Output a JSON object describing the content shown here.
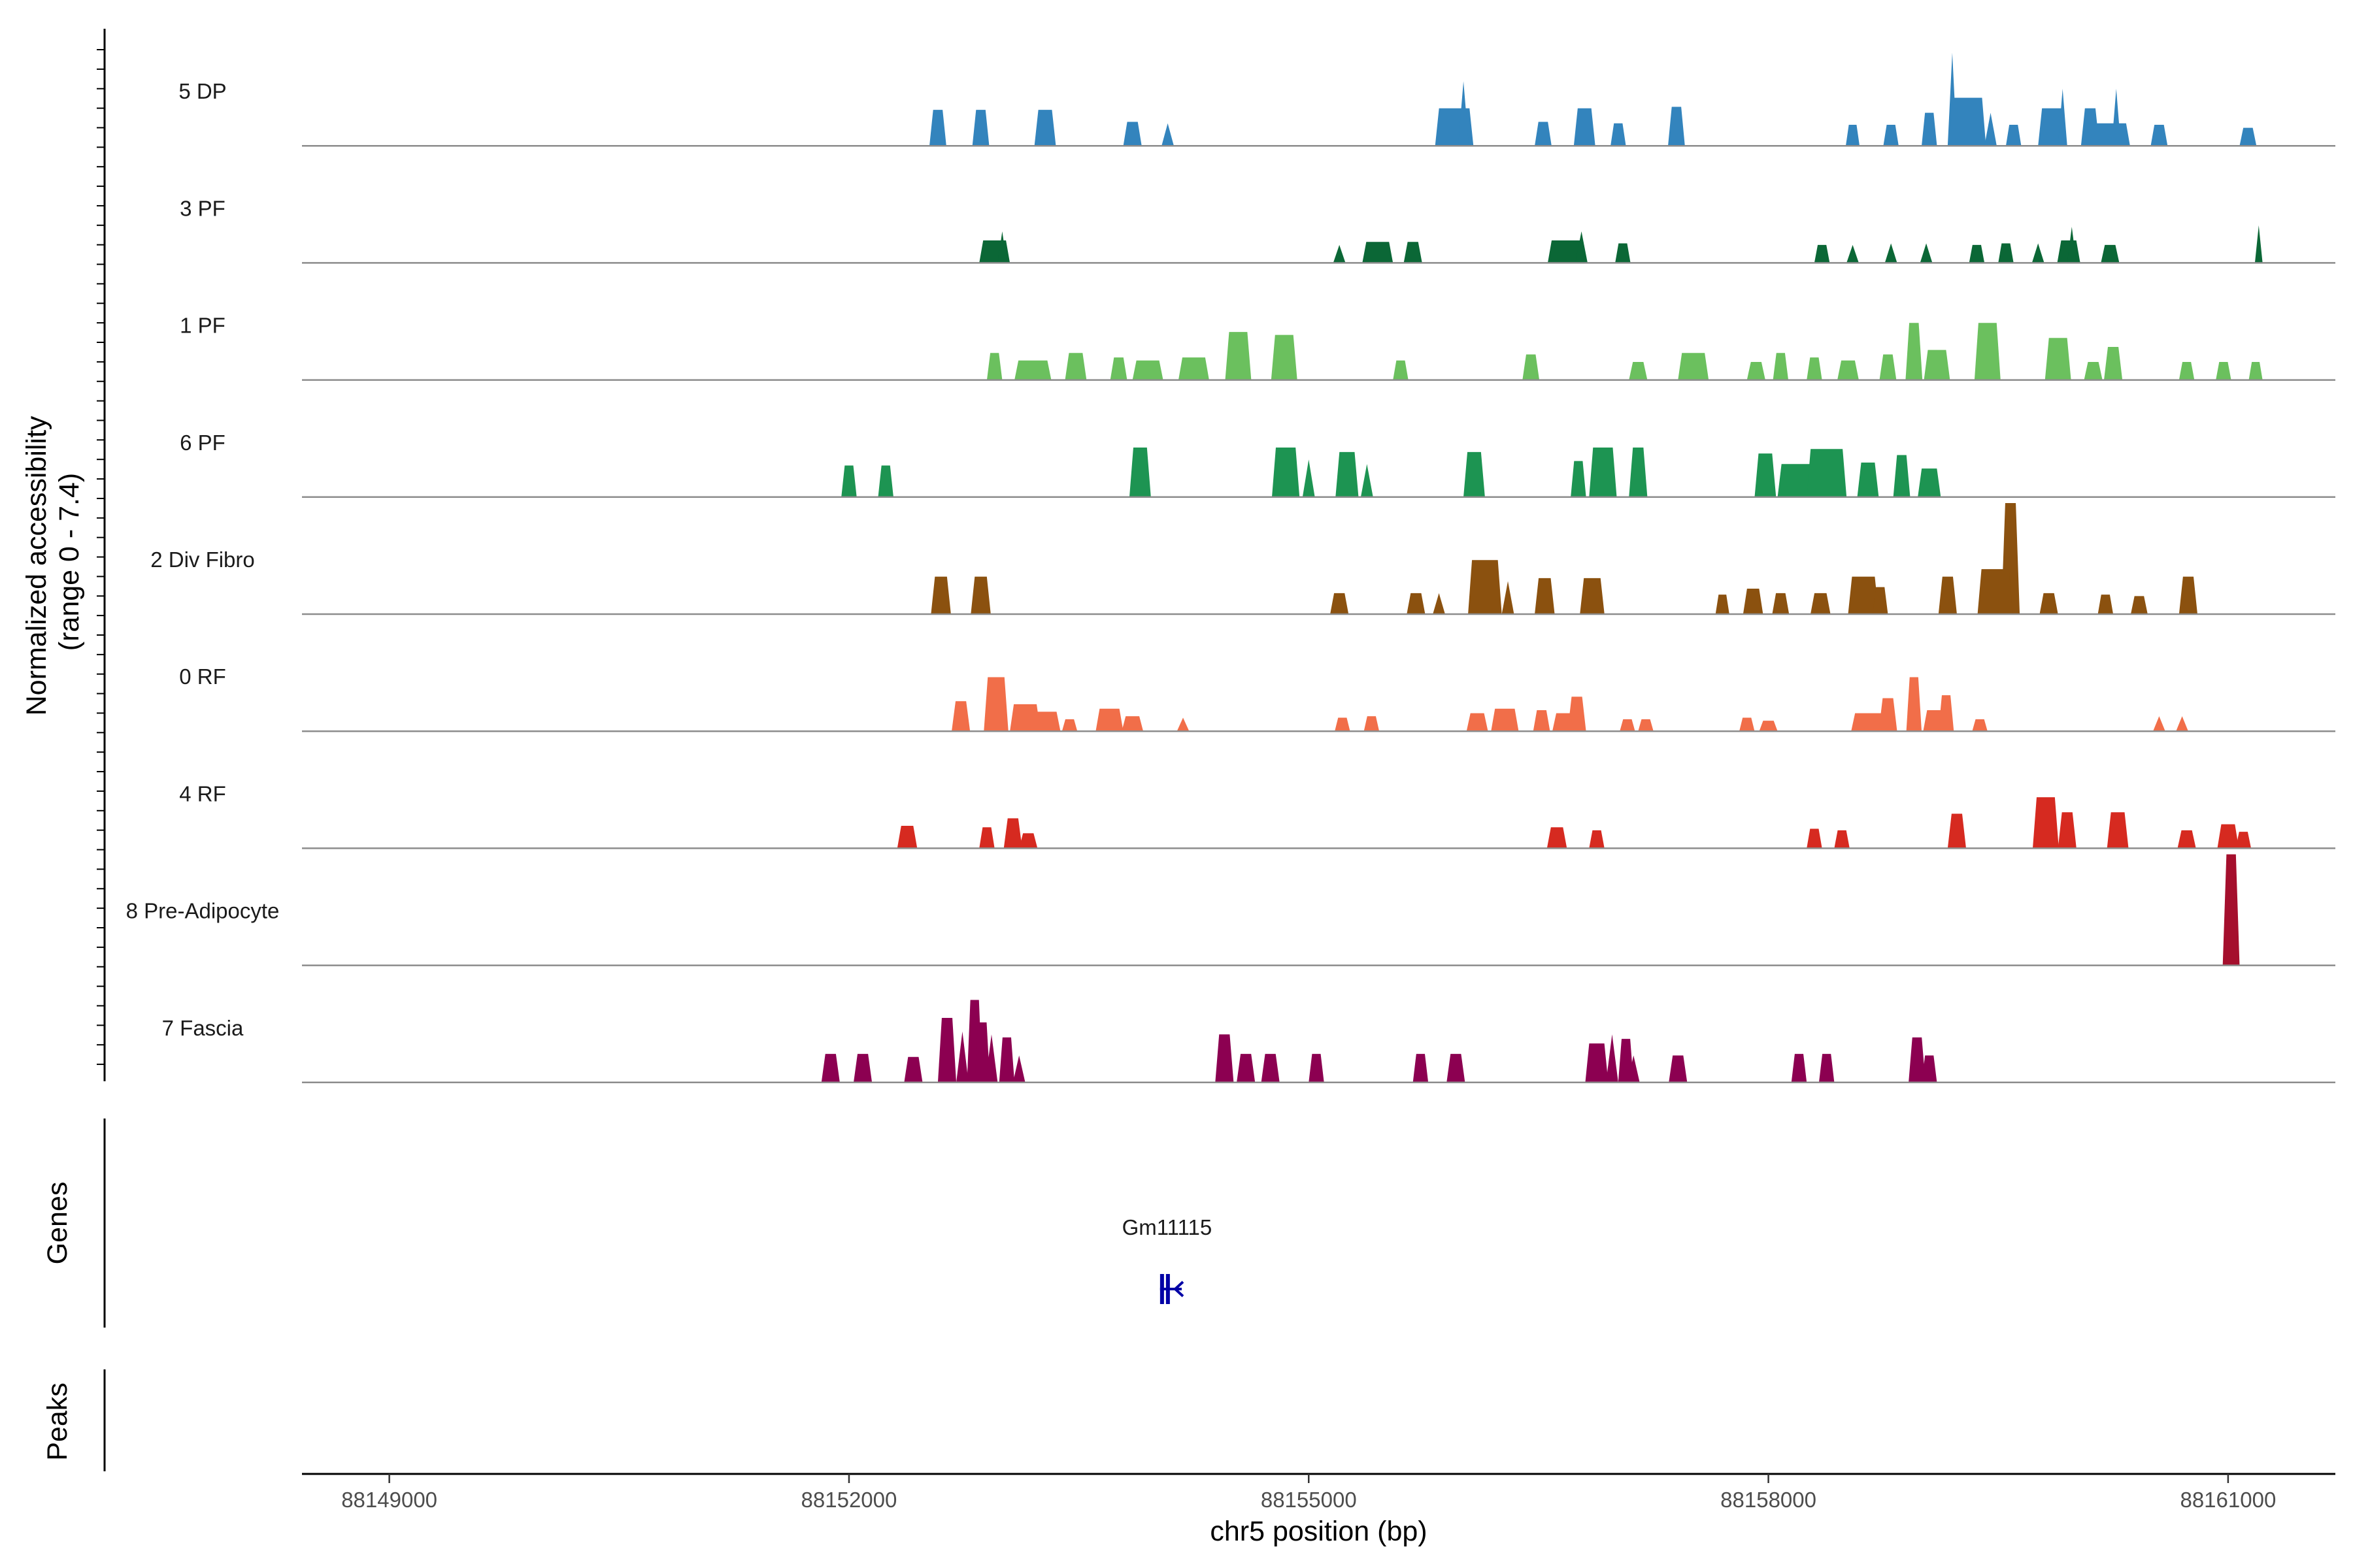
{
  "chart_data": {
    "type": "area",
    "title": "",
    "ylabel": "Normalized accessibility\n(range 0 - 7.4)",
    "ylim": [
      0,
      7.4
    ],
    "xlabel": "chr5 position (bp)",
    "xlim": [
      88148430,
      88161700
    ],
    "x_ticks": [
      88149000,
      88152000,
      88155000,
      88158000,
      88161000
    ],
    "x_tick_labels": [
      "88149000",
      "88152000",
      "88155000",
      "88158000",
      "88161000"
    ],
    "series": [
      {
        "name": "5 DP",
        "color": "#3384BD",
        "peaks": [
          [
            88152580,
            2.4,
            110
          ],
          [
            88152860,
            2.4,
            110
          ],
          [
            88153280,
            2.4,
            140
          ],
          [
            88153850,
            1.6,
            120
          ],
          [
            88154080,
            1.5,
            80
          ],
          [
            88155950,
            2.5,
            250
          ],
          [
            88156010,
            4.3,
            70
          ],
          [
            88156530,
            1.6,
            110
          ],
          [
            88156800,
            2.5,
            140
          ],
          [
            88157020,
            1.5,
            100
          ],
          [
            88157400,
            2.6,
            110
          ],
          [
            88158550,
            1.4,
            90
          ],
          [
            88158800,
            1.4,
            100
          ],
          [
            88159050,
            2.2,
            100
          ],
          [
            88159200,
            6.2,
            60
          ],
          [
            88159300,
            3.2,
            240
          ],
          [
            88159450,
            2.2,
            80
          ],
          [
            88159600,
            1.4,
            100
          ],
          [
            88159850,
            2.5,
            180
          ],
          [
            88159920,
            3.8,
            60
          ],
          [
            88160100,
            2.5,
            120
          ],
          [
            88160270,
            3.8,
            60
          ],
          [
            88160200,
            1.5,
            320
          ],
          [
            88160550,
            1.4,
            110
          ],
          [
            88161130,
            1.2,
            110
          ]
        ]
      },
      {
        "name": "3 PF",
        "color": "#0B6736",
        "peaks": [
          [
            88152950,
            1.5,
            200
          ],
          [
            88153000,
            2.1,
            60
          ],
          [
            88155200,
            1.2,
            80
          ],
          [
            88155450,
            1.4,
            200
          ],
          [
            88155680,
            1.4,
            120
          ],
          [
            88156680,
            1.5,
            240
          ],
          [
            88156780,
            2.1,
            80
          ],
          [
            88157050,
            1.3,
            100
          ],
          [
            88158350,
            1.2,
            100
          ],
          [
            88158550,
            1.2,
            80
          ],
          [
            88158800,
            1.3,
            80
          ],
          [
            88159030,
            1.3,
            80
          ],
          [
            88159360,
            1.2,
            100
          ],
          [
            88159550,
            1.3,
            100
          ],
          [
            88159760,
            1.3,
            80
          ],
          [
            88159960,
            1.5,
            150
          ],
          [
            88159980,
            2.4,
            60
          ],
          [
            88160230,
            1.2,
            120
          ],
          [
            88161200,
            2.5,
            50
          ]
        ]
      },
      {
        "name": "1 PF",
        "color": "#6BC05E",
        "peaks": [
          [
            88152950,
            1.8,
            100
          ],
          [
            88153200,
            1.3,
            240
          ],
          [
            88153480,
            1.8,
            140
          ],
          [
            88153760,
            1.5,
            110
          ],
          [
            88153950,
            1.3,
            200
          ],
          [
            88154250,
            1.5,
            200
          ],
          [
            88154540,
            3.2,
            170
          ],
          [
            88154840,
            3.0,
            170
          ],
          [
            88155600,
            1.3,
            100
          ],
          [
            88156450,
            1.7,
            110
          ],
          [
            88157150,
            1.2,
            120
          ],
          [
            88157510,
            1.8,
            200
          ],
          [
            88157920,
            1.2,
            120
          ],
          [
            88158080,
            1.8,
            100
          ],
          [
            88158300,
            1.5,
            100
          ],
          [
            88158520,
            1.3,
            140
          ],
          [
            88158780,
            1.7,
            110
          ],
          [
            88158950,
            3.8,
            110
          ],
          [
            88159100,
            2.0,
            170
          ],
          [
            88159430,
            3.8,
            170
          ],
          [
            88159890,
            2.8,
            170
          ],
          [
            88160120,
            1.2,
            120
          ],
          [
            88160250,
            2.2,
            120
          ],
          [
            88160730,
            1.2,
            100
          ],
          [
            88160970,
            1.2,
            100
          ],
          [
            88161180,
            1.2,
            90
          ]
        ]
      },
      {
        "name": "6 PF",
        "color": "#1D9452",
        "peaks": [
          [
            88152000,
            2.1,
            100
          ],
          [
            88152240,
            2.1,
            100
          ],
          [
            88153900,
            3.3,
            140
          ],
          [
            88154850,
            3.3,
            180
          ],
          [
            88155000,
            2.5,
            80
          ],
          [
            88155250,
            3.0,
            150
          ],
          [
            88155380,
            2.2,
            80
          ],
          [
            88156080,
            3.0,
            140
          ],
          [
            88156760,
            2.4,
            100
          ],
          [
            88156920,
            3.3,
            180
          ],
          [
            88157150,
            3.3,
            120
          ],
          [
            88157980,
            2.9,
            140
          ],
          [
            88158230,
            2.2,
            340
          ],
          [
            88158380,
            3.2,
            260
          ],
          [
            88158650,
            2.3,
            140
          ],
          [
            88158870,
            2.8,
            110
          ],
          [
            88159050,
            1.9,
            150
          ]
        ]
      },
      {
        "name": "2 Div Fibro",
        "color": "#8B510F",
        "peaks": [
          [
            88152600,
            2.5,
            130
          ],
          [
            88152860,
            2.5,
            130
          ],
          [
            88155200,
            1.4,
            120
          ],
          [
            88155700,
            1.4,
            120
          ],
          [
            88155850,
            1.4,
            80
          ],
          [
            88156150,
            3.6,
            220
          ],
          [
            88156300,
            2.2,
            80
          ],
          [
            88156540,
            2.4,
            130
          ],
          [
            88156850,
            2.4,
            160
          ],
          [
            88157700,
            1.3,
            90
          ],
          [
            88157900,
            1.7,
            130
          ],
          [
            88158080,
            1.4,
            110
          ],
          [
            88158340,
            1.4,
            130
          ],
          [
            88158620,
            2.5,
            200
          ],
          [
            88158730,
            1.8,
            100
          ],
          [
            88159170,
            2.5,
            120
          ],
          [
            88159580,
            7.4,
            120
          ],
          [
            88159480,
            3.0,
            230
          ],
          [
            88159830,
            1.4,
            120
          ],
          [
            88160200,
            1.3,
            100
          ],
          [
            88160420,
            1.2,
            110
          ],
          [
            88160740,
            2.5,
            120
          ]
        ]
      },
      {
        "name": "0 RF",
        "color": "#F16E49",
        "peaks": [
          [
            88152730,
            2.0,
            120
          ],
          [
            88152960,
            3.6,
            160
          ],
          [
            88153150,
            1.8,
            200
          ],
          [
            88153280,
            1.3,
            200
          ],
          [
            88153440,
            0.8,
            100
          ],
          [
            88153700,
            1.5,
            180
          ],
          [
            88153850,
            1.0,
            140
          ],
          [
            88154180,
            0.9,
            80
          ],
          [
            88155220,
            0.9,
            100
          ],
          [
            88155410,
            1.0,
            100
          ],
          [
            88156100,
            1.2,
            140
          ],
          [
            88156280,
            1.5,
            180
          ],
          [
            88156520,
            1.4,
            110
          ],
          [
            88156750,
            2.3,
            120
          ],
          [
            88156660,
            1.2,
            140
          ],
          [
            88157080,
            0.8,
            100
          ],
          [
            88157200,
            0.8,
            100
          ],
          [
            88157860,
            0.9,
            100
          ],
          [
            88158000,
            0.7,
            120
          ],
          [
            88158650,
            1.2,
            220
          ],
          [
            88158780,
            2.2,
            120
          ],
          [
            88158950,
            3.6,
            100
          ],
          [
            88159080,
            1.4,
            140
          ],
          [
            88159160,
            2.4,
            100
          ],
          [
            88159380,
            0.8,
            100
          ],
          [
            88160550,
            1.0,
            80
          ],
          [
            88160700,
            1.0,
            80
          ]
        ]
      },
      {
        "name": "4 RF",
        "color": "#D62A20",
        "peaks": [
          [
            88152380,
            1.5,
            130
          ],
          [
            88152900,
            1.4,
            100
          ],
          [
            88153070,
            2.0,
            120
          ],
          [
            88153170,
            1.0,
            120
          ],
          [
            88156620,
            1.4,
            130
          ],
          [
            88156880,
            1.2,
            100
          ],
          [
            88158300,
            1.3,
            100
          ],
          [
            88158480,
            1.2,
            100
          ],
          [
            88159230,
            2.3,
            120
          ],
          [
            88159810,
            3.4,
            170
          ],
          [
            88159950,
            2.4,
            120
          ],
          [
            88160280,
            2.4,
            140
          ],
          [
            88160730,
            1.2,
            120
          ],
          [
            88161000,
            1.6,
            140
          ],
          [
            88161100,
            1.1,
            100
          ]
        ]
      },
      {
        "name": "8 Pre-Adipocyte",
        "color": "#A50F2D",
        "peaks": [
          [
            88161020,
            7.4,
            110
          ]
        ]
      },
      {
        "name": "7 Fascia",
        "color": "#8C0051",
        "peaks": [
          [
            88151880,
            1.9,
            120
          ],
          [
            88152090,
            1.9,
            120
          ],
          [
            88152420,
            1.7,
            120
          ],
          [
            88152640,
            4.3,
            120
          ],
          [
            88152740,
            3.4,
            80
          ],
          [
            88152820,
            5.5,
            100
          ],
          [
            88152870,
            4.0,
            100
          ],
          [
            88152930,
            3.2,
            80
          ],
          [
            88153030,
            3.0,
            100
          ],
          [
            88153110,
            1.8,
            80
          ],
          [
            88154450,
            3.2,
            120
          ],
          [
            88154590,
            1.9,
            120
          ],
          [
            88154750,
            1.9,
            120
          ],
          [
            88155050,
            1.9,
            100
          ],
          [
            88155730,
            1.9,
            100
          ],
          [
            88155960,
            1.9,
            120
          ],
          [
            88156880,
            2.6,
            150
          ],
          [
            88156980,
            3.2,
            80
          ],
          [
            88157070,
            2.9,
            100
          ],
          [
            88157120,
            1.8,
            80
          ],
          [
            88157410,
            1.8,
            120
          ],
          [
            88158200,
            1.9,
            100
          ],
          [
            88158380,
            1.9,
            100
          ],
          [
            88158970,
            3.0,
            110
          ],
          [
            88159050,
            1.8,
            100
          ]
        ]
      }
    ],
    "genes": [
      {
        "name": "Gm11115",
        "start": 88154030,
        "end": 88154120,
        "strand": "-",
        "color": "#0000A6"
      }
    ],
    "panel_titles": {
      "genes": "Genes",
      "peaks": "Peaks"
    }
  }
}
